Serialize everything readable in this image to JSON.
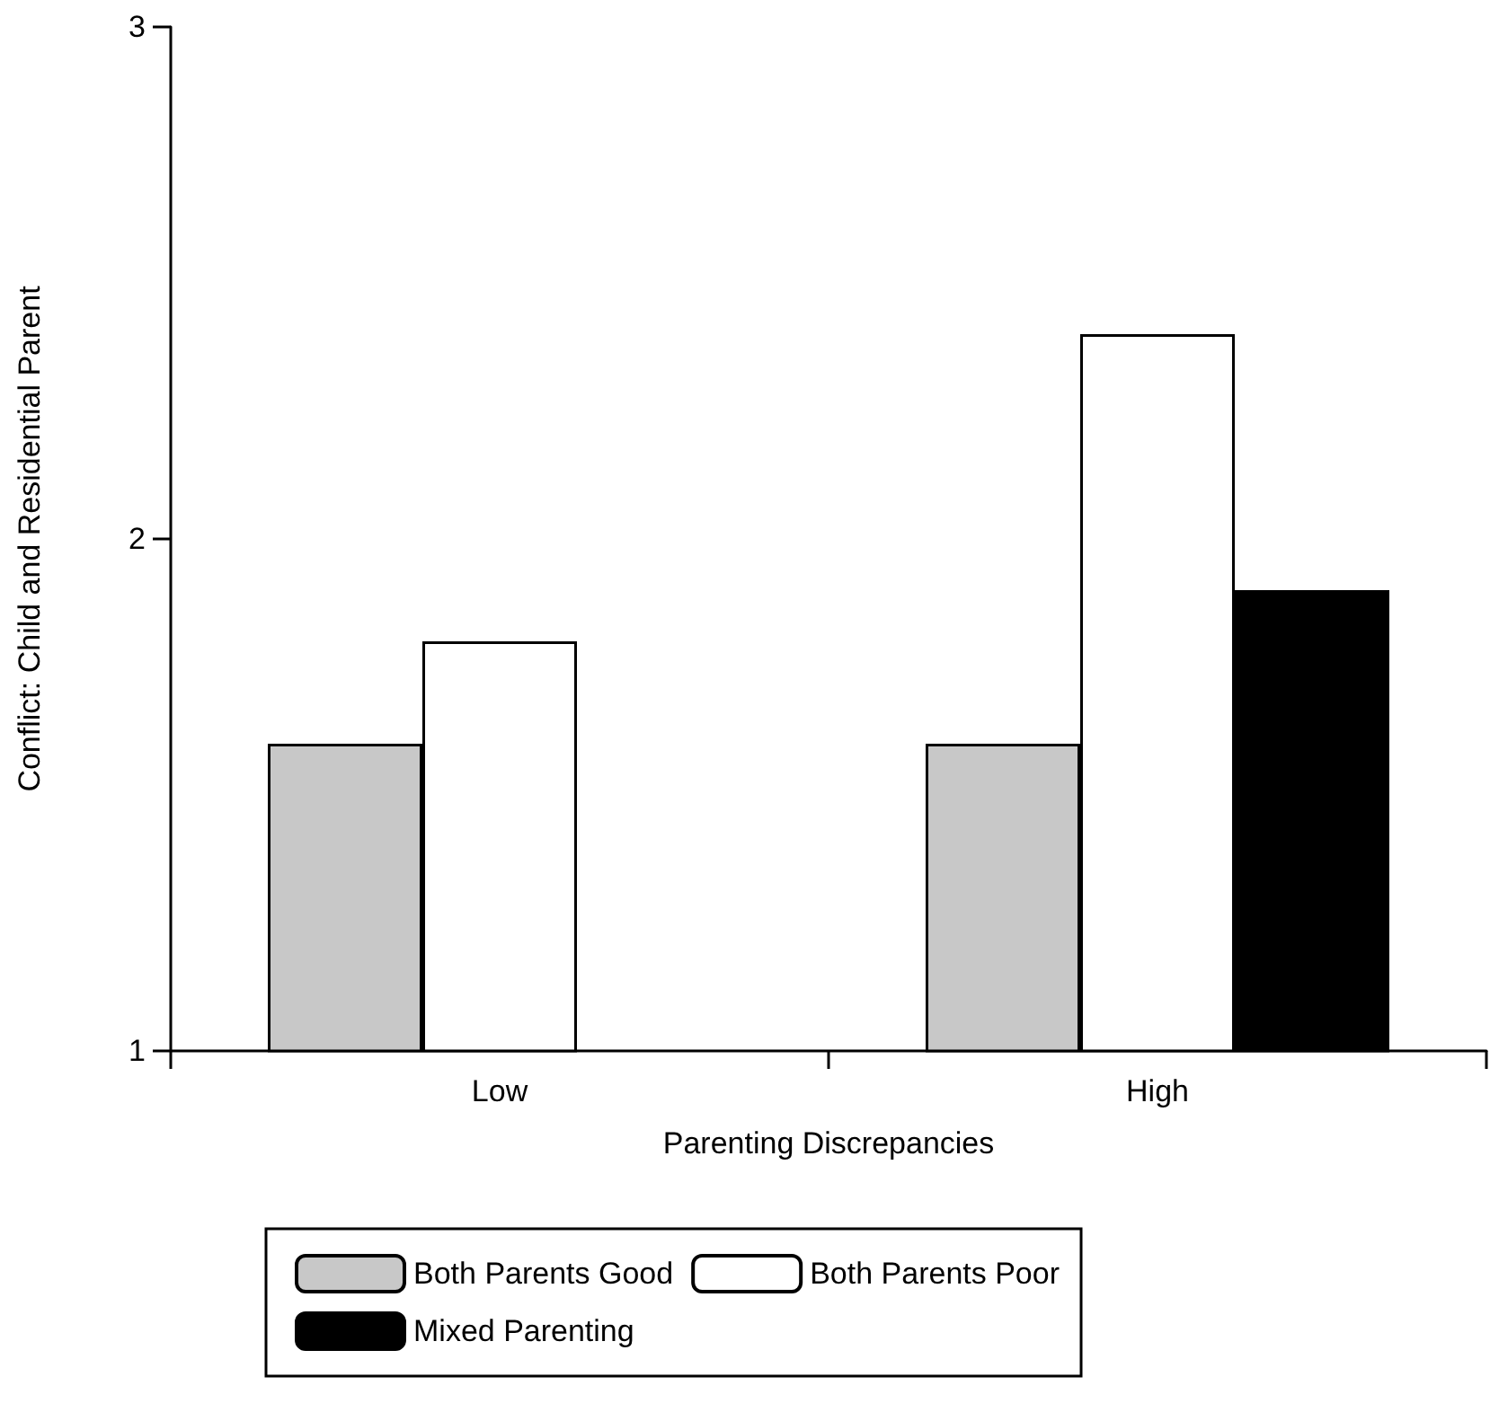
{
  "chart_data": {
    "type": "bar",
    "xlabel": "Parenting Discrepancies",
    "ylabel": "Conflict: Child and Residential Parent",
    "categories": [
      "Low",
      "High"
    ],
    "series": [
      {
        "name": "Both Parents Good",
        "color": "#c8c8c8",
        "values": [
          1.6,
          1.6
        ]
      },
      {
        "name": "Both Parents Poor",
        "color": "#ffffff",
        "values": [
          1.8,
          2.4
        ]
      },
      {
        "name": "Mixed Parenting",
        "color": "#000000",
        "values": [
          null,
          1.9
        ]
      }
    ],
    "ylim": [
      1,
      3
    ],
    "yticks": [
      1,
      2,
      3
    ],
    "grid": false,
    "legend": "bottom"
  }
}
